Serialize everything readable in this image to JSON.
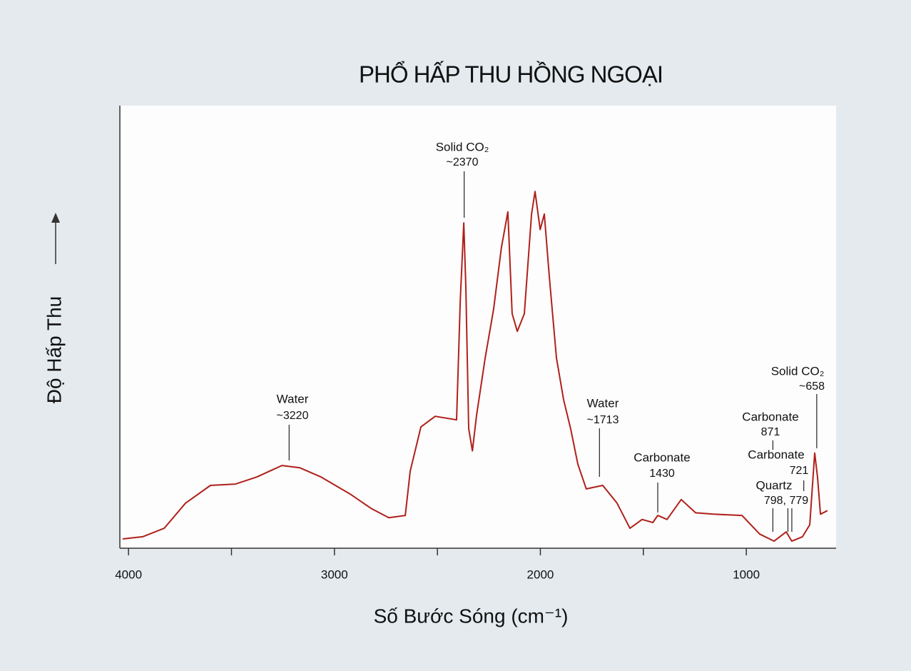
{
  "chart_data": {
    "type": "line",
    "title": "PHỔ HẤP THU HỒNG NGOẠI",
    "x_label": "Số Bước Sóng (cm⁻¹)",
    "y_label": "Độ Hấp Thu",
    "xlim": [
      4042,
      564
    ],
    "ylim": [
      0,
      100
    ],
    "xticks": [
      4000,
      3000,
      2000,
      1000
    ],
    "xminor": [
      3500,
      2500,
      1500
    ],
    "grid": false,
    "series": [
      {
        "color": "#b0201a",
        "x": [
          4028,
          3931,
          3827,
          3723,
          3602,
          3480,
          3377,
          3255,
          3169,
          3065,
          2926,
          2822,
          2736,
          2656,
          2632,
          2580,
          2511,
          2407,
          2389,
          2372,
          2362,
          2348,
          2330,
          2310,
          2268,
          2227,
          2189,
          2158,
          2137,
          2112,
          2078,
          2043,
          2026,
          2001,
          1981,
          1956,
          1922,
          1887,
          1853,
          1818,
          1777,
          1697,
          1628,
          1565,
          1506,
          1454,
          1430,
          1385,
          1316,
          1246,
          1160,
          1021,
          935,
          865,
          806,
          779,
          727,
          692,
          668,
          654,
          640,
          606
        ],
        "values": [
          2.1,
          2.6,
          4.5,
          10.2,
          14.2,
          14.5,
          16.1,
          18.7,
          18.2,
          16.1,
          12.3,
          9.0,
          6.9,
          7.4,
          17.4,
          27.4,
          29.8,
          29.0,
          56,
          73.5,
          59,
          27,
          22,
          30,
          43,
          54,
          68,
          76,
          53,
          49,
          53,
          75.5,
          80.6,
          72,
          75.5,
          61,
          43,
          33.5,
          27,
          19,
          13.4,
          14.2,
          10.2,
          4.5,
          6.5,
          5.8,
          7.4,
          6.5,
          11,
          8,
          7.7,
          7.4,
          3.2,
          1.6,
          3.7,
          1.6,
          2.6,
          5.3,
          21.5,
          16,
          7.7,
          8.5
        ]
      }
    ],
    "annotations": [
      {
        "lines": [
          "Water",
          "~3220"
        ],
        "x": [
          3220
        ]
      },
      {
        "lines": [
          "Solid CO₂",
          "~2370"
        ],
        "x": [
          2370
        ]
      },
      {
        "lines": [
          "Water",
          "~1713"
        ],
        "x": [
          1713
        ]
      },
      {
        "lines": [
          "Carbonate",
          "1430"
        ],
        "x": [
          1430
        ]
      },
      {
        "lines": [
          "Carbonate",
          "871"
        ],
        "x": [
          871
        ]
      },
      {
        "lines": [
          "Carbonate",
          "721"
        ],
        "x": [
          721
        ]
      },
      {
        "lines": [
          "Quartz",
          "798, 779"
        ],
        "x": [
          798,
          779
        ]
      },
      {
        "lines": [
          "Solid CO₂",
          "~658"
        ],
        "x": [
          658
        ]
      }
    ]
  }
}
